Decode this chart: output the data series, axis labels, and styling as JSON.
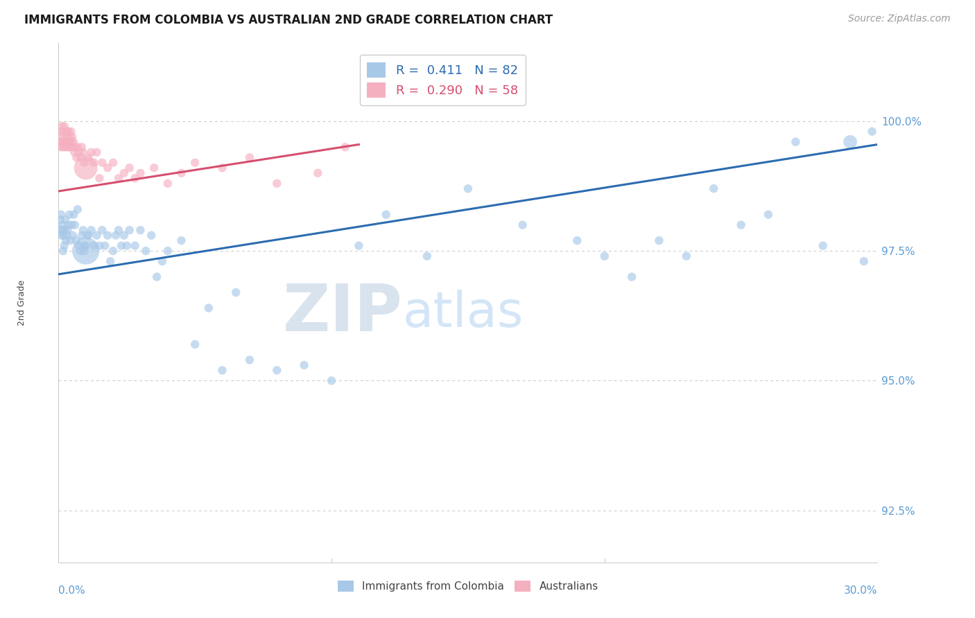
{
  "title": "IMMIGRANTS FROM COLOMBIA VS AUSTRALIAN 2ND GRADE CORRELATION CHART",
  "source": "Source: ZipAtlas.com",
  "ylabel": "2nd Grade",
  "yticks": [
    92.5,
    95.0,
    97.5,
    100.0
  ],
  "xlim": [
    0.0,
    30.0
  ],
  "ylim": [
    91.5,
    101.5
  ],
  "blue_label": "Immigrants from Colombia",
  "pink_label": "Australians",
  "blue_R": "0.411",
  "blue_N": "82",
  "pink_R": "0.290",
  "pink_N": "58",
  "blue_color": "#a8c8e8",
  "pink_color": "#f5b0c0",
  "blue_line_color": "#2b6cb0",
  "pink_line_color": "#d64e6e",
  "blue_trend_x": [
    0.0,
    30.0
  ],
  "blue_trend_y": [
    97.05,
    99.55
  ],
  "pink_trend_x": [
    0.0,
    11.0
  ],
  "pink_trend_y": [
    98.65,
    99.55
  ],
  "watermark_ZIP": "ZIP",
  "watermark_atlas": "atlas",
  "background_color": "#ffffff",
  "grid_color": "#c8c8c8",
  "tick_color": "#5b9bd5",
  "title_fontsize": 12,
  "source_fontsize": 10,
  "blue_x": [
    0.05,
    0.07,
    0.09,
    0.11,
    0.13,
    0.15,
    0.17,
    0.19,
    0.21,
    0.23,
    0.25,
    0.27,
    0.3,
    0.33,
    0.36,
    0.4,
    0.44,
    0.48,
    0.52,
    0.56,
    0.6,
    0.65,
    0.7,
    0.75,
    0.8,
    0.85,
    0.9,
    0.95,
    1.0,
    1.1,
    1.2,
    1.3,
    1.4,
    1.5,
    1.6,
    1.7,
    1.8,
    1.9,
    2.0,
    2.1,
    2.2,
    2.3,
    2.4,
    2.5,
    2.6,
    2.8,
    3.0,
    3.2,
    3.4,
    3.6,
    3.8,
    4.0,
    4.5,
    5.0,
    5.5,
    6.0,
    6.5,
    7.0,
    8.0,
    9.0,
    10.0,
    11.0,
    12.0,
    13.5,
    15.0,
    17.0,
    19.0,
    20.0,
    21.0,
    22.0,
    23.0,
    24.0,
    25.0,
    26.0,
    27.0,
    28.0,
    29.0,
    29.5,
    29.8,
    0.95,
    1.0,
    1.05
  ],
  "blue_y": [
    97.9,
    98.1,
    98.2,
    97.8,
    97.9,
    98.0,
    97.5,
    97.8,
    97.6,
    97.9,
    98.1,
    97.7,
    97.8,
    97.9,
    98.0,
    98.2,
    97.7,
    98.0,
    97.8,
    98.2,
    98.0,
    97.7,
    98.3,
    97.6,
    97.5,
    97.8,
    97.9,
    97.6,
    97.5,
    97.8,
    97.9,
    97.6,
    97.8,
    97.6,
    97.9,
    97.6,
    97.8,
    97.3,
    97.5,
    97.8,
    97.9,
    97.6,
    97.8,
    97.6,
    97.9,
    97.6,
    97.9,
    97.5,
    97.8,
    97.0,
    97.3,
    97.5,
    97.7,
    95.7,
    96.4,
    95.2,
    96.7,
    95.4,
    95.2,
    95.3,
    95.0,
    97.6,
    98.2,
    97.4,
    98.7,
    98.0,
    97.7,
    97.4,
    97.0,
    97.7,
    97.4,
    98.7,
    98.0,
    98.2,
    99.6,
    97.6,
    99.6,
    97.3,
    99.8,
    97.5,
    97.6,
    97.8
  ],
  "blue_sizes": [
    120,
    80,
    80,
    80,
    80,
    80,
    80,
    80,
    80,
    80,
    80,
    80,
    80,
    80,
    80,
    80,
    80,
    80,
    80,
    80,
    80,
    80,
    80,
    80,
    80,
    80,
    80,
    80,
    800,
    80,
    80,
    80,
    80,
    80,
    80,
    80,
    80,
    80,
    80,
    80,
    80,
    80,
    80,
    80,
    80,
    80,
    80,
    80,
    80,
    80,
    80,
    80,
    80,
    80,
    80,
    80,
    80,
    80,
    80,
    80,
    80,
    80,
    80,
    80,
    80,
    80,
    80,
    80,
    80,
    80,
    80,
    80,
    80,
    80,
    80,
    80,
    200,
    80,
    80,
    80,
    80,
    80
  ],
  "pink_x": [
    0.04,
    0.06,
    0.08,
    0.1,
    0.12,
    0.14,
    0.16,
    0.18,
    0.2,
    0.22,
    0.24,
    0.26,
    0.28,
    0.3,
    0.32,
    0.34,
    0.36,
    0.38,
    0.4,
    0.42,
    0.44,
    0.46,
    0.48,
    0.5,
    0.52,
    0.55,
    0.58,
    0.62,
    0.66,
    0.7,
    0.75,
    0.8,
    0.85,
    0.9,
    0.95,
    1.0,
    1.1,
    1.2,
    1.3,
    1.4,
    1.5,
    1.6,
    1.8,
    2.0,
    2.2,
    2.4,
    2.6,
    2.8,
    3.0,
    3.5,
    4.0,
    4.5,
    5.0,
    6.0,
    7.0,
    8.0,
    9.5,
    10.5
  ],
  "pink_y": [
    99.6,
    99.5,
    99.8,
    99.6,
    99.9,
    99.7,
    99.5,
    99.8,
    99.6,
    99.9,
    99.5,
    99.7,
    99.6,
    99.8,
    99.5,
    99.6,
    99.8,
    99.5,
    99.7,
    99.6,
    99.5,
    99.8,
    99.6,
    99.7,
    99.5,
    99.6,
    99.4,
    99.5,
    99.3,
    99.5,
    99.4,
    99.3,
    99.5,
    99.4,
    99.2,
    99.1,
    99.3,
    99.4,
    99.2,
    99.4,
    98.9,
    99.2,
    99.1,
    99.2,
    98.9,
    99.0,
    99.1,
    98.9,
    99.0,
    99.1,
    98.8,
    99.0,
    99.2,
    99.1,
    99.3,
    98.8,
    99.0,
    99.5
  ],
  "pink_sizes": [
    80,
    80,
    80,
    80,
    80,
    80,
    80,
    80,
    80,
    80,
    80,
    80,
    80,
    80,
    80,
    80,
    80,
    80,
    80,
    80,
    80,
    80,
    80,
    80,
    80,
    80,
    80,
    80,
    80,
    80,
    80,
    80,
    80,
    80,
    80,
    600,
    80,
    80,
    80,
    80,
    80,
    80,
    80,
    80,
    80,
    80,
    80,
    80,
    80,
    80,
    80,
    80,
    80,
    80,
    80,
    80,
    80,
    80
  ]
}
